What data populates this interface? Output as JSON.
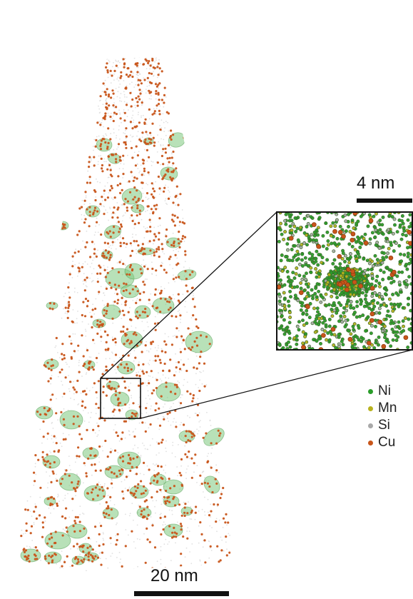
{
  "scale_bars": {
    "inset": "4 nm",
    "main": "20 nm"
  },
  "legend": [
    {
      "label": "Ni",
      "color": "#2a9d2a"
    },
    {
      "label": "Mn",
      "color": "#b8b21e"
    },
    {
      "label": "Si",
      "color": "#a9a9a9"
    },
    {
      "label": "Cu",
      "color": "#c8551a"
    }
  ],
  "colors": {
    "precipitate_fill": "#7ec87e",
    "precipitate_edge": "#4f9a4f",
    "cu_atom": "#c8551a",
    "background_atom": "#d8d8d8",
    "outline": "#111111"
  }
}
